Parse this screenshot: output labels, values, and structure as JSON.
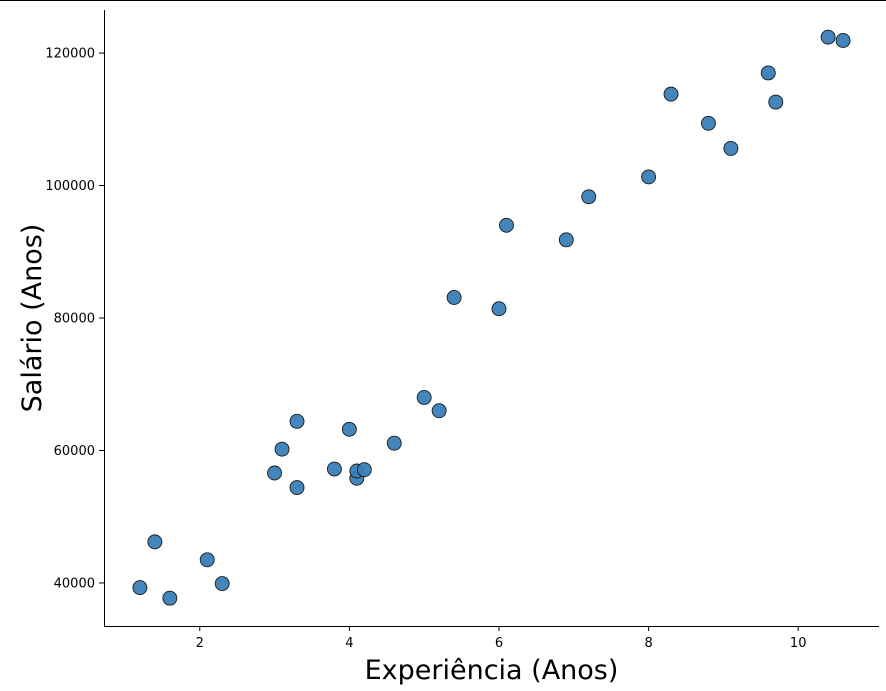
{
  "chart_data": {
    "type": "scatter",
    "title": "",
    "xlabel": "Experiência (Anos)",
    "ylabel": "Salário (Anos)",
    "xlim": [
      0.72,
      11.08
    ],
    "ylim": [
      33500,
      126500
    ],
    "xticks": [
      2,
      4,
      6,
      8,
      10
    ],
    "yticks": [
      40000,
      60000,
      80000,
      100000,
      120000
    ],
    "xtick_labels": [
      "2",
      "4",
      "6",
      "8",
      "10"
    ],
    "ytick_labels": [
      "40000",
      "60000",
      "80000",
      "100000",
      "120000"
    ],
    "grid": false,
    "legend": "none",
    "marker_color": "#3a80b7",
    "marker_edge_color": "#1a1a1a",
    "series": [
      {
        "points": [
          [
            1.2,
            39300
          ],
          [
            1.4,
            46200
          ],
          [
            1.6,
            37700
          ],
          [
            2.1,
            43500
          ],
          [
            2.3,
            39900
          ],
          [
            3.0,
            56600
          ],
          [
            3.1,
            60200
          ],
          [
            3.3,
            54400
          ],
          [
            3.3,
            64400
          ],
          [
            3.8,
            57200
          ],
          [
            4.0,
            63200
          ],
          [
            4.1,
            55800
          ],
          [
            4.1,
            56900
          ],
          [
            4.2,
            57100
          ],
          [
            4.6,
            61100
          ],
          [
            5.0,
            68000
          ],
          [
            5.2,
            66000
          ],
          [
            5.4,
            83100
          ],
          [
            6.0,
            81400
          ],
          [
            6.1,
            94000
          ],
          [
            6.9,
            91800
          ],
          [
            7.2,
            98300
          ],
          [
            8.0,
            101300
          ],
          [
            8.3,
            113800
          ],
          [
            8.8,
            109400
          ],
          [
            9.1,
            105600
          ],
          [
            9.6,
            117000
          ],
          [
            9.7,
            112600
          ],
          [
            10.4,
            122400
          ],
          [
            10.6,
            121900
          ]
        ]
      }
    ]
  }
}
